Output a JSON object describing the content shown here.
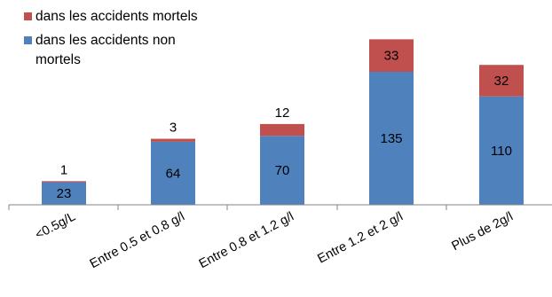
{
  "colors": {
    "fatal": "#C0504D",
    "non_fatal": "#4F81BD",
    "axis": "#868686"
  },
  "chart_data": {
    "type": "bar",
    "stacked": true,
    "categories": [
      "<0.5g/L",
      "Entre 0.5 et 0.8 g/l",
      "Entre 0.8 et 1.2 g/l",
      "Entre 1.2 et 2 g/l",
      "Plus de 2g/l"
    ],
    "series": [
      {
        "name": "dans les accidents non mortels",
        "values": [
          23,
          64,
          70,
          135,
          110
        ]
      },
      {
        "name": "dans les accidents mortels",
        "values": [
          1,
          3,
          12,
          33,
          32
        ]
      }
    ],
    "ylim": [
      0,
      180
    ],
    "legend_position": "top-left",
    "grid": false
  },
  "legend": {
    "items": [
      {
        "label": "dans les accidents mortels",
        "color": "#C0504D"
      },
      {
        "label": "dans les accidents non mortels",
        "color": "#4F81BD"
      }
    ]
  }
}
